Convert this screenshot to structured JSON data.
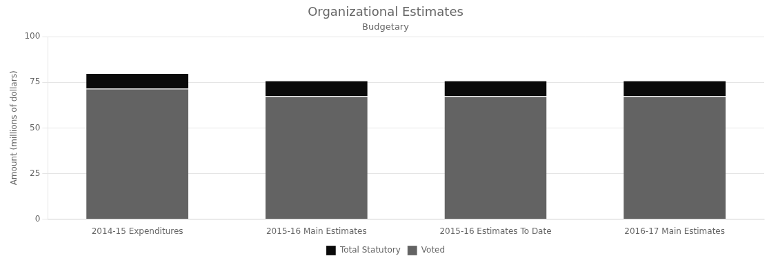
{
  "chart_data": {
    "type": "bar",
    "title": "Organizational Estimates",
    "subtitle": "Budgetary",
    "ylabel": "Amount (millions of dollars)",
    "categories": [
      "2014-15 Expenditures",
      "2015-16 Main Estimates",
      "2015-16 Estimates To Date",
      "2016-17 Main Estimates"
    ],
    "series": [
      {
        "name": "Voted",
        "color": "#636363",
        "values": [
          71.5,
          67.5,
          67.5,
          67.5
        ]
      },
      {
        "name": "Total Statutory",
        "color": "#0a0a0a",
        "values": [
          8.5,
          8.5,
          8.5,
          8.5
        ]
      }
    ],
    "stacked": true,
    "ylim": [
      0,
      100
    ],
    "yticks": [
      0,
      25,
      50,
      75,
      100
    ],
    "grid": true,
    "legend": "bottom"
  }
}
